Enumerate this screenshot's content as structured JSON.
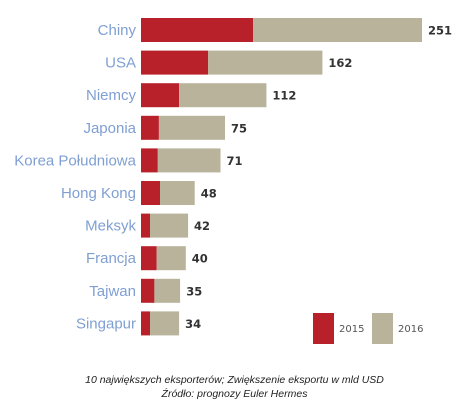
{
  "chart_data": {
    "type": "bar",
    "orientation": "horizontal",
    "stacked": true,
    "categories": [
      "Chiny",
      "USA",
      "Niemcy",
      "Japonia",
      "Korea Południowa",
      "Hong Kong",
      "Meksyk",
      "Francja",
      "Tajwan",
      "Singapur"
    ],
    "series": [
      {
        "name": "2015",
        "color": "#b8202a",
        "values": [
          100,
          60,
          34,
          16,
          15,
          17,
          8,
          14,
          12,
          8
        ]
      },
      {
        "name": "2016",
        "color": "#b8b39a",
        "values": [
          151,
          102,
          78,
          59,
          56,
          31,
          34,
          26,
          23,
          26
        ]
      }
    ],
    "totals": [
      251,
      162,
      112,
      75,
      71,
      48,
      42,
      40,
      35,
      34
    ],
    "legend_position": "bottom-right",
    "grid": false
  },
  "caption": {
    "line1": "10 największych eksporterów; Zwiększenie eksportu w mld USD",
    "line2": "Źródło: prognozy Euler Hermes"
  }
}
